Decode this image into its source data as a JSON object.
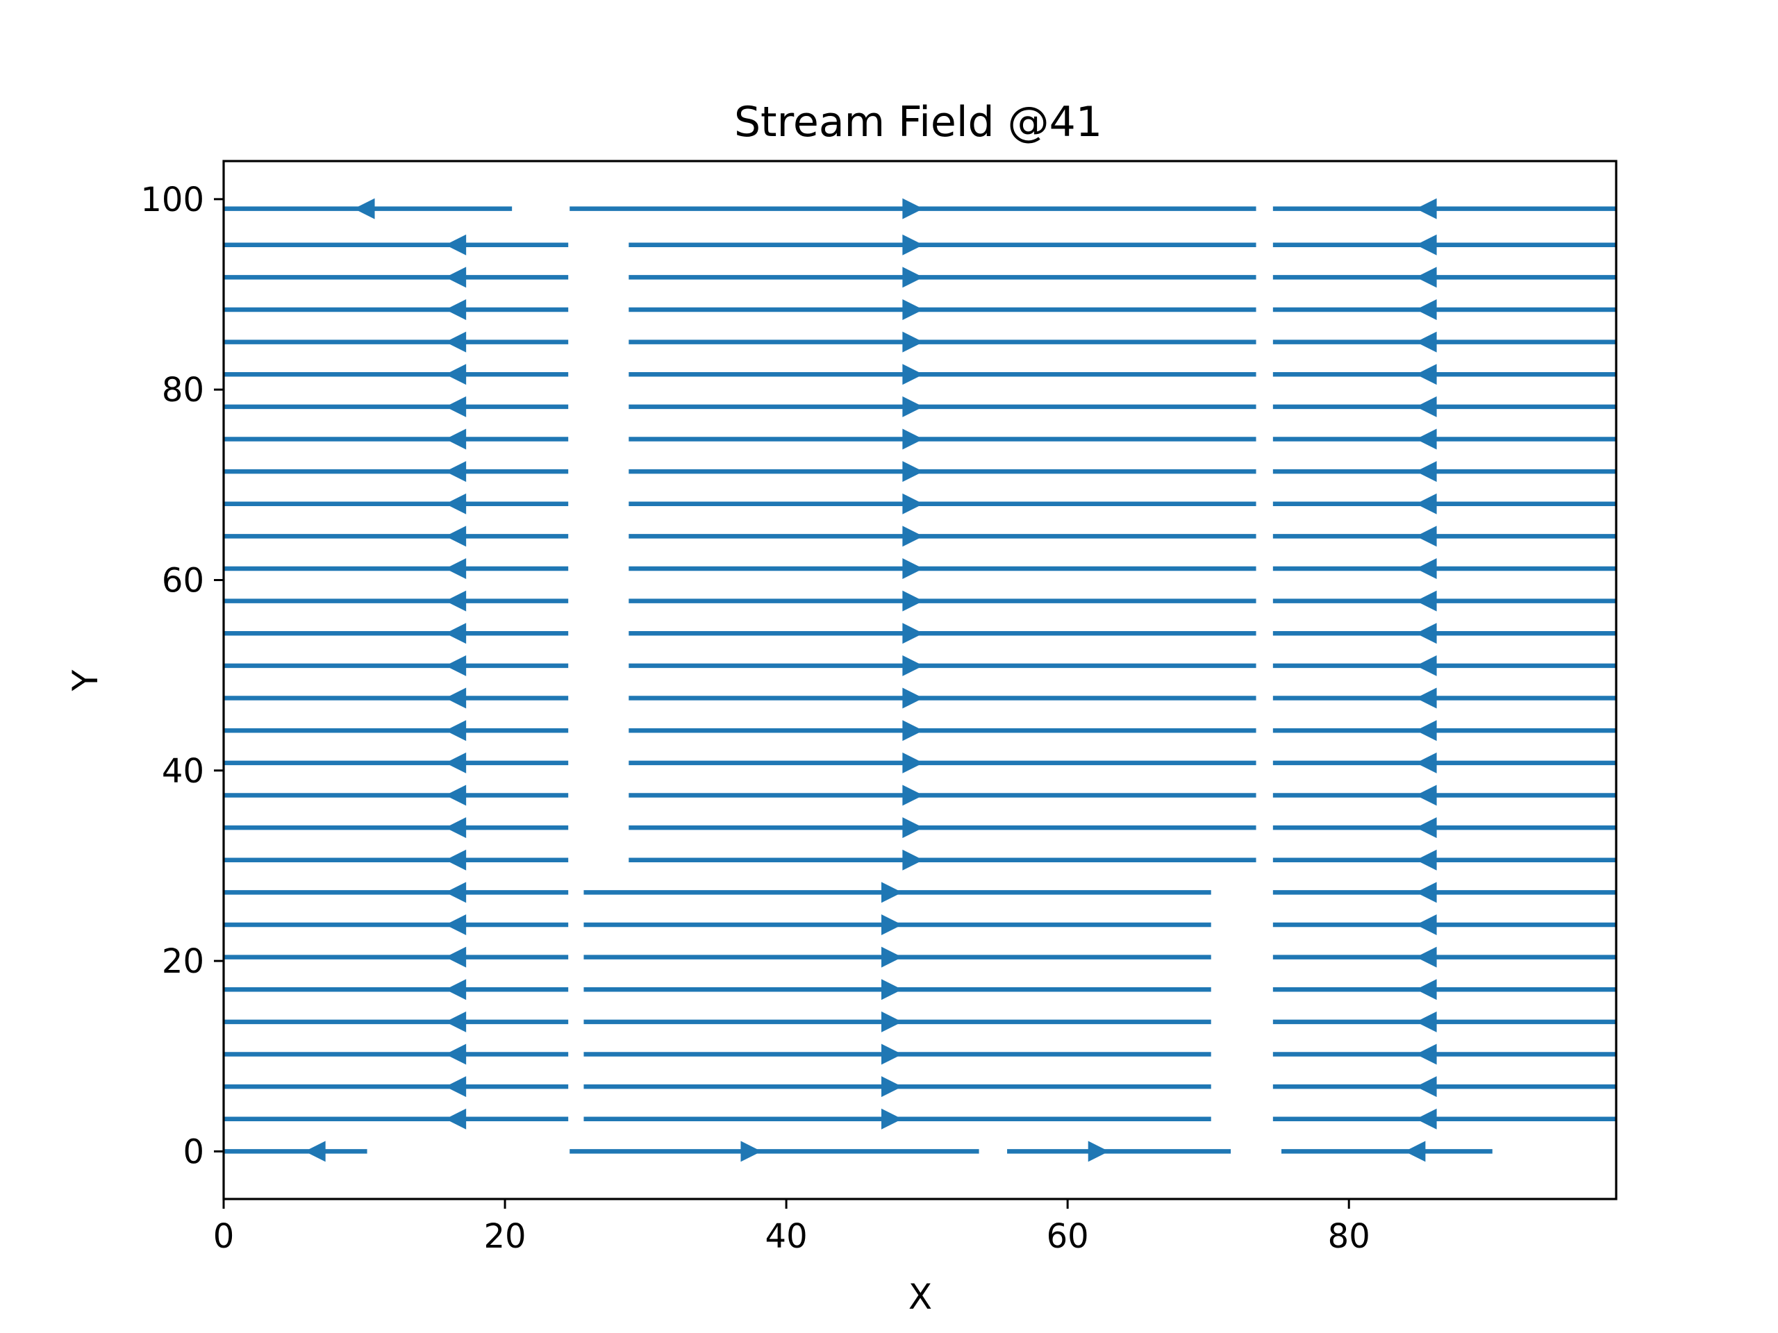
{
  "chart_data": {
    "type": "streamplot",
    "title": "Stream Field @41",
    "xlabel": "X",
    "ylabel": "Y",
    "xlim": [
      0,
      99
    ],
    "ylim": [
      -5,
      104
    ],
    "xticks": [
      0,
      20,
      40,
      60,
      80
    ],
    "yticks": [
      0,
      20,
      40,
      60,
      80,
      100
    ],
    "grid": false,
    "legend": "none",
    "color": "#1f77b4",
    "field": {
      "description_of_flow": "Horizontal streamlines; leftward flow for x < ~25 and x > ~74, rightward flow between",
      "bands": [
        {
          "x_from": 0,
          "x_to": 24.5,
          "direction": "left",
          "arrow_x": 16.5
        },
        {
          "x_from": 28.8,
          "x_to": 73.4,
          "y_min": 30.6,
          "direction": "right",
          "arrow_x": 49
        },
        {
          "x_from": 25.6,
          "x_to": 70.2,
          "y_max": 27.2,
          "direction": "right",
          "arrow_x": 47.5
        },
        {
          "x_from": 74.6,
          "x_to": 99,
          "direction": "left",
          "arrow_x": 85.5
        }
      ]
    },
    "streamlines": [
      {
        "y": 99,
        "x_start": 0,
        "x_end": 20.5,
        "direction": "left",
        "arrow_x": 10
      },
      {
        "y": 99,
        "x_start": 24.6,
        "x_end": 73.4,
        "direction": "right",
        "arrow_x": 49
      },
      {
        "y": 99,
        "x_start": 74.6,
        "x_end": 99,
        "direction": "left",
        "arrow_x": 85.5
      },
      {
        "y": 0,
        "x_start": 0,
        "x_end": 10.2,
        "direction": "left",
        "arrow_x": 6.5
      },
      {
        "y": 0,
        "x_start": 24.6,
        "x_end": 53.7,
        "direction": "right",
        "arrow_x": 37.5
      },
      {
        "y": 0,
        "x_start": 55.7,
        "x_end": 71.6,
        "direction": "right",
        "arrow_x": 62.2
      },
      {
        "y": 0,
        "x_start": 75.2,
        "x_end": 90.2,
        "direction": "left",
        "arrow_x": 84.7
      }
    ],
    "row_y_values": [
      3.4,
      6.8,
      10.2,
      13.6,
      17.0,
      20.4,
      23.8,
      27.2,
      30.6,
      34.0,
      37.4,
      40.8,
      44.2,
      47.6,
      51.0,
      54.4,
      57.8,
      61.2,
      64.6,
      68.0,
      71.4,
      74.8,
      78.2,
      81.6,
      85.0,
      88.4,
      91.8,
      95.2
    ]
  }
}
